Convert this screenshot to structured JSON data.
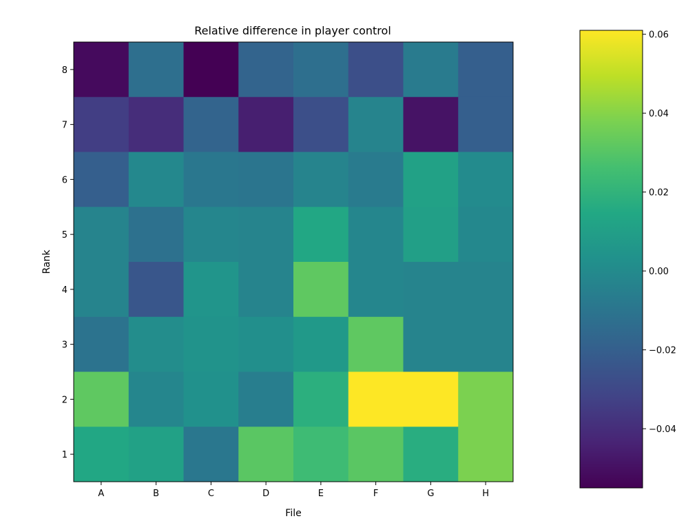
{
  "chart_data": {
    "type": "heatmap",
    "title": "Relative difference in player control",
    "xlabel": "File",
    "ylabel": "Rank",
    "x_categories": [
      "A",
      "B",
      "C",
      "D",
      "E",
      "F",
      "G",
      "H"
    ],
    "y_categories": [
      "8",
      "7",
      "6",
      "5",
      "4",
      "3",
      "2",
      "1"
    ],
    "values": [
      [
        -0.052,
        -0.013,
        -0.055,
        -0.018,
        -0.013,
        -0.027,
        -0.007,
        -0.02
      ],
      [
        -0.034,
        -0.04,
        -0.018,
        -0.045,
        -0.027,
        -0.003,
        -0.049,
        -0.02
      ],
      [
        -0.02,
        -0.001,
        -0.009,
        -0.01,
        -0.003,
        -0.007,
        0.011,
        0.0
      ],
      [
        -0.003,
        -0.012,
        -0.002,
        -0.003,
        0.014,
        -0.002,
        0.01,
        -0.001
      ],
      [
        -0.003,
        -0.024,
        0.005,
        -0.003,
        0.032,
        -0.002,
        -0.003,
        -0.003
      ],
      [
        -0.011,
        0.001,
        0.004,
        0.002,
        0.007,
        0.032,
        -0.003,
        -0.003
      ],
      [
        0.032,
        -0.002,
        0.003,
        -0.006,
        0.018,
        0.061,
        0.061,
        0.038
      ],
      [
        0.014,
        0.011,
        -0.009,
        0.031,
        0.024,
        0.031,
        0.017,
        0.038
      ]
    ],
    "colormap": "viridis",
    "vmin": -0.055,
    "vmax": 0.061,
    "colorbar_ticks": [
      0.06,
      0.04,
      0.02,
      0.0,
      -0.02,
      -0.04
    ],
    "colorbar_tick_labels": [
      "0.06",
      "0.04",
      "0.02",
      "0.00",
      "−0.02",
      "−0.04"
    ]
  }
}
